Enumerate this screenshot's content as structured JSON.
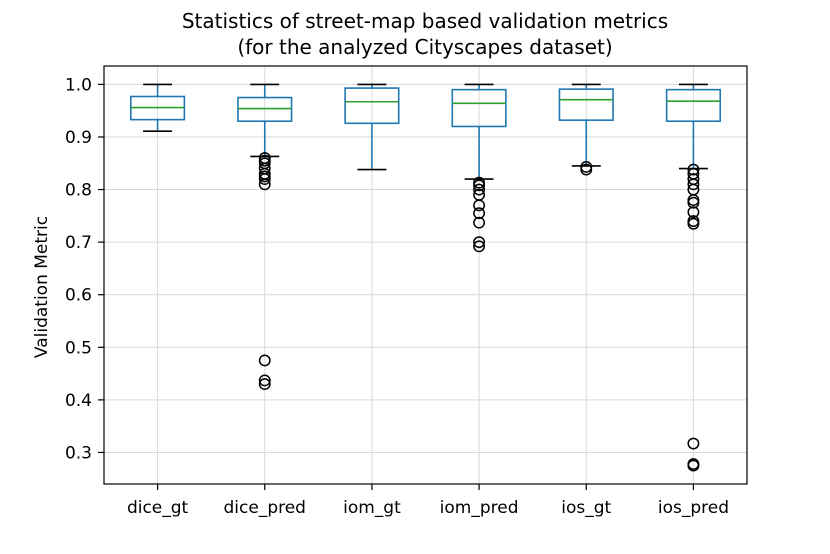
{
  "chart_data": {
    "type": "box",
    "title": [
      "Statistics of street-map based validation metrics",
      "(for the analyzed Cityscapes dataset)"
    ],
    "xlabel": "",
    "ylabel": "Validation Metric",
    "ylim": [
      0.24,
      1.035
    ],
    "yticks": [
      0.3,
      0.4,
      0.5,
      0.6,
      0.7,
      0.8,
      0.9,
      1.0
    ],
    "ytick_labels": [
      "0.3",
      "0.4",
      "0.5",
      "0.6",
      "0.7",
      "0.8",
      "0.9",
      "1.0"
    ],
    "grid": true,
    "colors": {
      "box": "#1f77b4",
      "median": "#2ca02c",
      "whisker_cap": "#000000",
      "grid": "#d9d9d9",
      "flier": "#000000"
    },
    "categories": [
      "dice_gt",
      "dice_pred",
      "iom_gt",
      "iom_pred",
      "ios_gt",
      "ios_pred"
    ],
    "boxes": [
      {
        "name": "dice_gt",
        "whislo": 0.911,
        "q1": 0.933,
        "med": 0.956,
        "q3": 0.977,
        "whishi": 1.0,
        "fliers": []
      },
      {
        "name": "dice_pred",
        "whislo": 0.863,
        "q1": 0.93,
        "med": 0.954,
        "q3": 0.975,
        "whishi": 1.0,
        "fliers": [
          0.86,
          0.855,
          0.85,
          0.84,
          0.83,
          0.825,
          0.82,
          0.81,
          0.475,
          0.437,
          0.43
        ]
      },
      {
        "name": "iom_gt",
        "whislo": 0.838,
        "q1": 0.926,
        "med": 0.967,
        "q3": 0.993,
        "whishi": 1.0,
        "fliers": []
      },
      {
        "name": "iom_pred",
        "whislo": 0.82,
        "q1": 0.92,
        "med": 0.964,
        "q3": 0.99,
        "whishi": 1.0,
        "fliers": [
          0.813,
          0.808,
          0.8,
          0.79,
          0.77,
          0.755,
          0.737,
          0.7,
          0.692
        ]
      },
      {
        "name": "ios_gt",
        "whislo": 0.845,
        "q1": 0.932,
        "med": 0.971,
        "q3": 0.991,
        "whishi": 1.0,
        "fliers": [
          0.843,
          0.838
        ]
      },
      {
        "name": "ios_pred",
        "whislo": 0.84,
        "q1": 0.93,
        "med": 0.968,
        "q3": 0.99,
        "whishi": 1.0,
        "fliers": [
          0.838,
          0.83,
          0.82,
          0.81,
          0.8,
          0.78,
          0.775,
          0.757,
          0.74,
          0.735,
          0.317,
          0.278,
          0.275
        ]
      }
    ]
  }
}
